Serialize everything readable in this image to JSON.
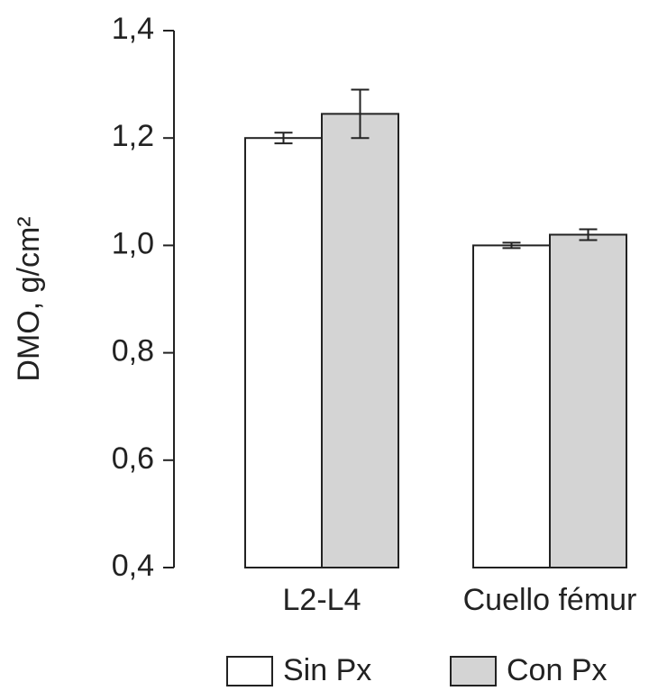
{
  "chart_data": {
    "type": "bar",
    "y_label": "DMO, g/cm²",
    "categories": [
      "L2-L4",
      "Cuello fémur"
    ],
    "series": [
      {
        "name": "Sin Px",
        "color": "#ffffff",
        "values": [
          1.2,
          1.0
        ],
        "errors": [
          0.01,
          0.005
        ]
      },
      {
        "name": "Con Px",
        "color": "#d4d4d4",
        "values": [
          1.245,
          1.02
        ],
        "errors": [
          0.045,
          0.01
        ]
      }
    ],
    "ylim": [
      0.4,
      1.4
    ],
    "yticks": [
      {
        "value": 0.4,
        "label": "0,4"
      },
      {
        "value": 0.6,
        "label": "0,6"
      },
      {
        "value": 0.8,
        "label": "0,8"
      },
      {
        "value": 1.0,
        "label": "1,0"
      },
      {
        "value": 1.2,
        "label": "1,2"
      },
      {
        "value": 1.4,
        "label": "1,4"
      }
    ],
    "legend": "bottom"
  }
}
